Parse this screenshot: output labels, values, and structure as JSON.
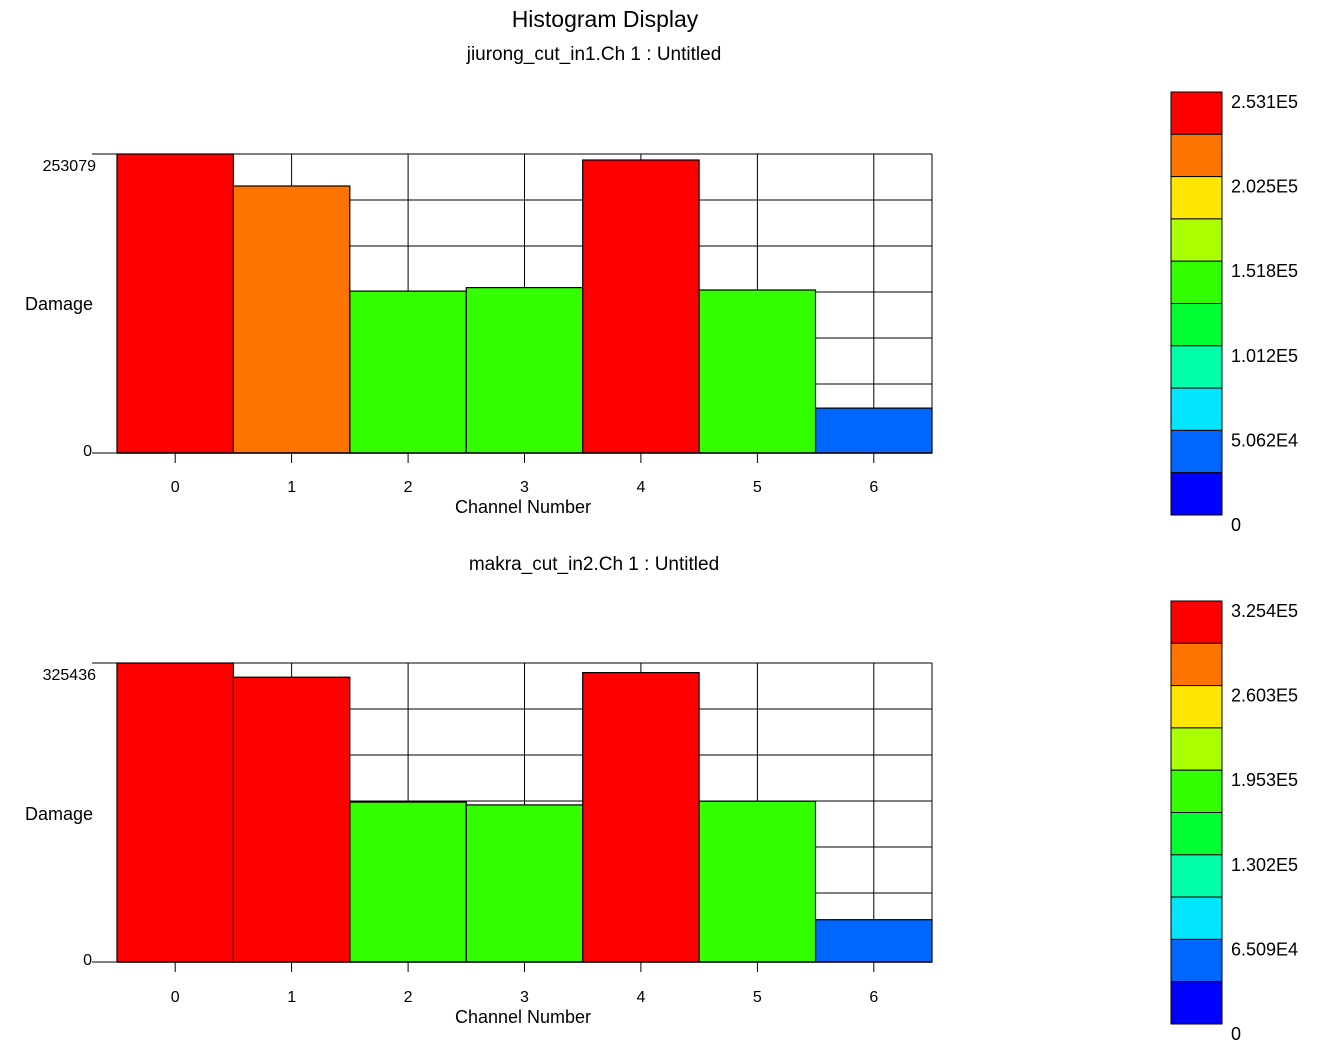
{
  "title": "Histogram Display",
  "chart_data": [
    {
      "type": "bar",
      "subtitle": "jiurong_cut_in1.Ch 1 : Untitled",
      "xlabel": "Channel Number",
      "ylabel": "Damage",
      "categories": [
        "0",
        "1",
        "2",
        "3",
        "4",
        "5",
        "6"
      ],
      "values": [
        253079,
        226000,
        137000,
        140000,
        248000,
        138000,
        38000
      ],
      "bar_colors": [
        "#ff0000",
        "#ff7300",
        "#33ff00",
        "#33ff00",
        "#ff0000",
        "#33ff00",
        "#0066ff"
      ],
      "ylim": [
        0,
        253079
      ],
      "ytick_labels": [
        "253079",
        "0"
      ],
      "grid": true,
      "colorbar": {
        "colors": [
          "#ff0000",
          "#ff7300",
          "#ffe600",
          "#aaff00",
          "#33ff00",
          "#00ff33",
          "#00ffaa",
          "#00e6ff",
          "#0066ff",
          "#0000ff"
        ],
        "labels": [
          "2.531E5",
          "2.025E5",
          "1.518E5",
          "1.012E5",
          "5.062E4",
          "0"
        ]
      }
    },
    {
      "type": "bar",
      "subtitle": "makra_cut_in2.Ch 1 : Untitled",
      "xlabel": "Channel Number",
      "ylabel": "Damage",
      "categories": [
        "0",
        "1",
        "2",
        "3",
        "4",
        "5",
        "6"
      ],
      "values": [
        325436,
        310000,
        174000,
        171000,
        315000,
        175000,
        46000
      ],
      "bar_colors": [
        "#ff0000",
        "#ff0000",
        "#33ff00",
        "#33ff00",
        "#ff0000",
        "#33ff00",
        "#0066ff"
      ],
      "ylim": [
        0,
        325436
      ],
      "ytick_labels": [
        "325436",
        "0"
      ],
      "grid": true,
      "colorbar": {
        "colors": [
          "#ff0000",
          "#ff7300",
          "#ffe600",
          "#aaff00",
          "#33ff00",
          "#00ff33",
          "#00ffaa",
          "#00e6ff",
          "#0066ff",
          "#0000ff"
        ],
        "labels": [
          "3.254E5",
          "2.603E5",
          "1.953E5",
          "1.302E5",
          "6.509E4",
          "0"
        ]
      }
    }
  ]
}
